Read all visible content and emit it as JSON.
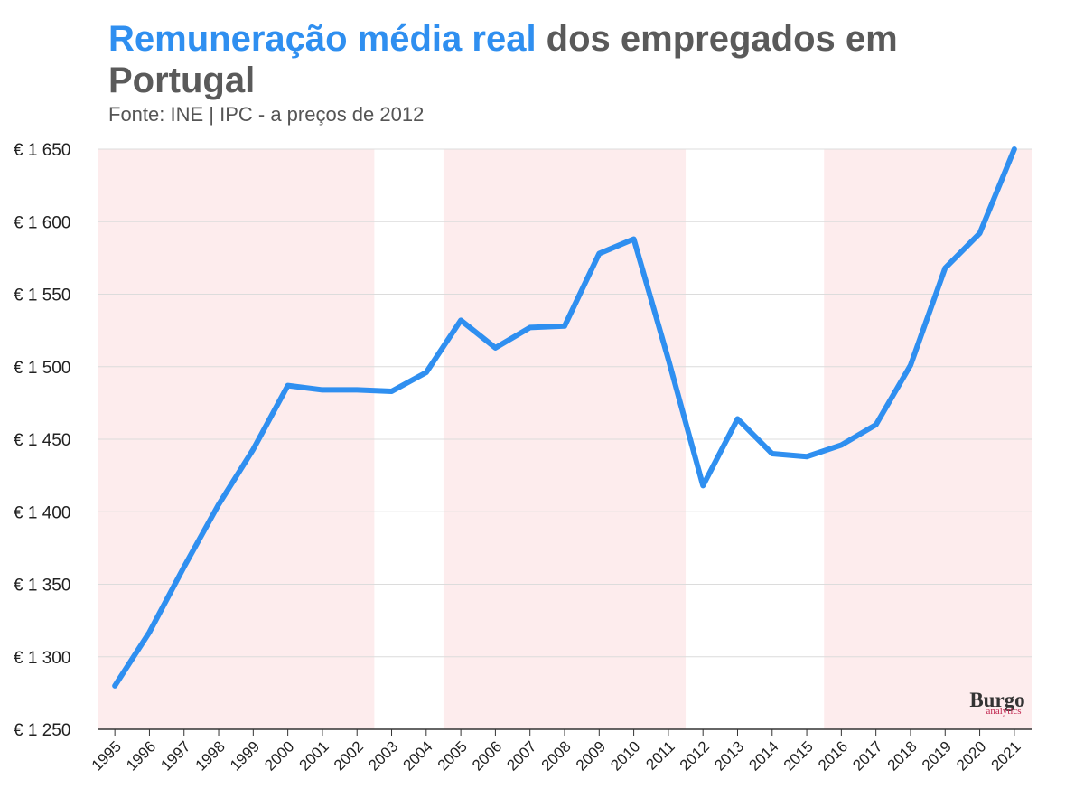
{
  "chart_data": {
    "type": "line",
    "title_highlight": "Remuneração média real",
    "title_rest": " dos empregados em Portugal",
    "subtitle": "Fonte: INE | IPC - a preços de 2012",
    "categories": [
      "1995",
      "1996",
      "1997",
      "1998",
      "1999",
      "2000",
      "2001",
      "2002",
      "2003",
      "2004",
      "2005",
      "2006",
      "2007",
      "2008",
      "2009",
      "2010",
      "2011",
      "2012",
      "2013",
      "2014",
      "2015",
      "2016",
      "2017",
      "2018",
      "2019",
      "2020",
      "2021"
    ],
    "series": [
      {
        "values": [
          1280,
          1317,
          1362,
          1405,
          1443,
          1487,
          1484,
          1484,
          1483,
          1496,
          1532,
          1513,
          1527,
          1528,
          1578,
          1588,
          1505,
          1418,
          1464,
          1440,
          1438,
          1446,
          1460,
          1501,
          1568,
          1592,
          1650
        ],
        "color": "#2f8ff0"
      }
    ],
    "ylim": [
      1250,
      1650
    ],
    "yticks": [
      1250,
      1300,
      1350,
      1400,
      1450,
      1500,
      1550,
      1600,
      1650
    ],
    "ytick_labels": [
      "€ 1 250",
      "€ 1 300",
      "€ 1 350",
      "€ 1 400",
      "€ 1 450",
      "€ 1 500",
      "€ 1 550",
      "€ 1 600",
      "€ 1 650"
    ],
    "shaded_periods": [
      {
        "from": "1995",
        "to": "2002",
        "color": "#fdeced"
      },
      {
        "from": "2005",
        "to": "2011",
        "color": "#fdeced"
      },
      {
        "from": "2016",
        "to": "2021",
        "color": "#fdeced"
      }
    ],
    "grid": true,
    "xlabel": "",
    "ylabel": ""
  },
  "watermark": {
    "line1": "Burgo",
    "line2": "analytics"
  }
}
